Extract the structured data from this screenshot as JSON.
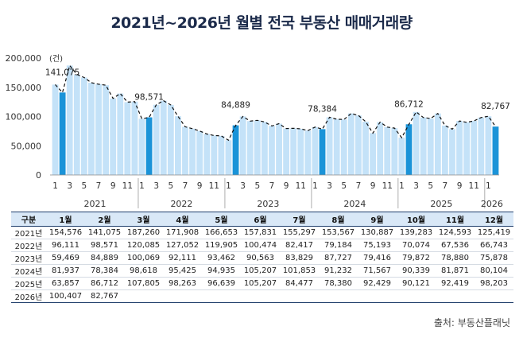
{
  "title": "2021년~2026년 월별 전국 부동산 매매거래량",
  "source": "출처: 부동산플래닛",
  "chart_data": {
    "type": "bar",
    "title": "2021년~2026년 월별 전국 부동산 매매거래량",
    "unit_label": "(건)",
    "ylim": [
      0,
      200000
    ],
    "yticks": [
      "0",
      "50,000",
      "100,000",
      "150,000",
      "200,000"
    ],
    "x_tick_labels": [
      "1",
      "3",
      "5",
      "7",
      "9",
      "11"
    ],
    "year_labels": [
      "2021",
      "2022",
      "2023",
      "2024",
      "2025",
      "2026"
    ],
    "highlighted_month": "1",
    "values": [
      154576,
      141075,
      187260,
      171908,
      166653,
      157831,
      155297,
      153567,
      130887,
      139283,
      124593,
      125419,
      96111,
      98571,
      120085,
      127052,
      119905,
      100474,
      82417,
      79184,
      75193,
      70074,
      67536,
      66743,
      59469,
      84889,
      100069,
      92111,
      93462,
      90563,
      83829,
      87727,
      79416,
      79872,
      78880,
      75878,
      81937,
      78384,
      98618,
      95425,
      94935,
      105207,
      101853,
      91232,
      71567,
      90339,
      81871,
      80104,
      63857,
      86712,
      107805,
      98263,
      96639,
      105207,
      84477,
      78380,
      92429,
      90121,
      92419,
      98203,
      100407,
      82767
    ],
    "data_labels": [
      {
        "index": 1,
        "text": "141,075"
      },
      {
        "index": 13,
        "text": "98,571"
      },
      {
        "index": 25,
        "text": "84,889"
      },
      {
        "index": 37,
        "text": "78,384"
      },
      {
        "index": 49,
        "text": "86,712"
      },
      {
        "index": 61,
        "text": "82,767"
      }
    ],
    "colors": {
      "bar": "#c4e2f8",
      "highlight": "#1a93d8",
      "line": "#111111"
    }
  },
  "table": {
    "headers": [
      "구분",
      "1월",
      "2월",
      "3월",
      "4월",
      "5월",
      "6월",
      "7월",
      "8월",
      "9월",
      "10월",
      "11월",
      "12월"
    ],
    "rows": [
      [
        "2021년",
        "154,576",
        "141,075",
        "187,260",
        "171,908",
        "166,653",
        "157,831",
        "155,297",
        "153,567",
        "130,887",
        "139,283",
        "124,593",
        "125,419"
      ],
      [
        "2022년",
        "96,111",
        "98,571",
        "120,085",
        "127,052",
        "119,905",
        "100,474",
        "82,417",
        "79,184",
        "75,193",
        "70,074",
        "67,536",
        "66,743"
      ],
      [
        "2023년",
        "59,469",
        "84,889",
        "100,069",
        "92,111",
        "93,462",
        "90,563",
        "83,829",
        "87,727",
        "79,416",
        "79,872",
        "78,880",
        "75,878"
      ],
      [
        "2024년",
        "81,937",
        "78,384",
        "98,618",
        "95,425",
        "94,935",
        "105,207",
        "101,853",
        "91,232",
        "71,567",
        "90,339",
        "81,871",
        "80,104"
      ],
      [
        "2025년",
        "63,857",
        "86,712",
        "107,805",
        "98,263",
        "96,639",
        "105,207",
        "84,477",
        "78,380",
        "92,429",
        "90,121",
        "92,419",
        "98,203"
      ],
      [
        "2026년",
        "100,407",
        "82,767",
        "",
        "",
        "",
        "",
        "",
        "",
        "",
        "",
        "",
        ""
      ]
    ]
  }
}
